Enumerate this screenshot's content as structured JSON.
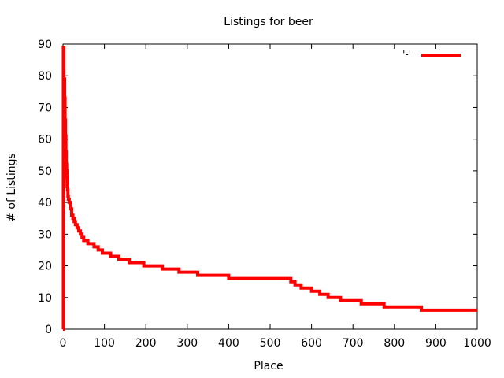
{
  "chart_data": {
    "type": "line",
    "title": "Listings for beer",
    "xlabel": "Place",
    "ylabel": "# of Listings",
    "xlim": [
      0,
      1000
    ],
    "ylim": [
      0,
      90
    ],
    "xticks": [
      0,
      100,
      200,
      300,
      400,
      500,
      600,
      700,
      800,
      900,
      1000
    ],
    "yticks": [
      0,
      10,
      20,
      30,
      40,
      50,
      60,
      70,
      80,
      90
    ],
    "grid": false,
    "legend": {
      "position": "top-right",
      "label": "'-'"
    },
    "series": [
      {
        "color": "#ff0000",
        "x": [
          0,
          1,
          1,
          2,
          2,
          3,
          3,
          4,
          4,
          5,
          5,
          6,
          6,
          7,
          7,
          8,
          8,
          9,
          9,
          10,
          10,
          11,
          11,
          12,
          12,
          13,
          13,
          15,
          15,
          18,
          18,
          21,
          21,
          24,
          24,
          27,
          27,
          30,
          30,
          34,
          34,
          38,
          38,
          42,
          42,
          46,
          46,
          50,
          50,
          60,
          60,
          75,
          75,
          85,
          85,
          95,
          95,
          115,
          115,
          135,
          135,
          160,
          160,
          195,
          195,
          240,
          240,
          280,
          280,
          325,
          325,
          400,
          400,
          550,
          550,
          560,
          560,
          575,
          575,
          600,
          600,
          620,
          620,
          640,
          640,
          670,
          670,
          720,
          720,
          775,
          775,
          865,
          865,
          1000
        ],
        "y": [
          0,
          0,
          89,
          89,
          45,
          45,
          79,
          79,
          73,
          73,
          66,
          66,
          61,
          61,
          56,
          56,
          52,
          52,
          50,
          50,
          48,
          48,
          44,
          44,
          42,
          42,
          41,
          41,
          40,
          40,
          38,
          38,
          36,
          36,
          35,
          35,
          34,
          34,
          33,
          33,
          32,
          32,
          31,
          31,
          30,
          30,
          29,
          29,
          28,
          28,
          27,
          27,
          26,
          26,
          25,
          25,
          24,
          24,
          23,
          23,
          22,
          22,
          21,
          21,
          20,
          20,
          19,
          19,
          18,
          18,
          17,
          17,
          16,
          16,
          15,
          15,
          14,
          14,
          13,
          13,
          12,
          12,
          11,
          11,
          10,
          10,
          9,
          9,
          8,
          8,
          7,
          7,
          6,
          6
        ]
      }
    ]
  }
}
